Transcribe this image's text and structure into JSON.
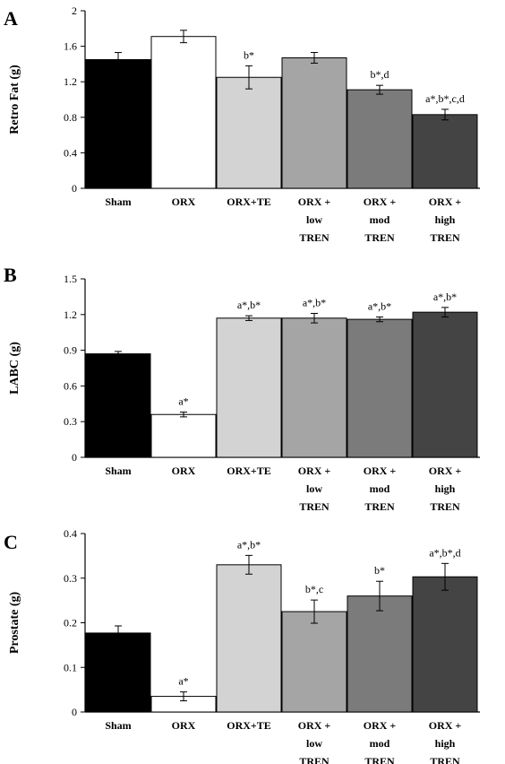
{
  "chart_data": [
    {
      "type": "bar",
      "panel": "A",
      "ylabel": "Retro Fat (g)",
      "ylim": [
        0,
        2
      ],
      "yticks": [
        "0",
        "0.4",
        "0.8",
        "1.2",
        "1.6",
        "2"
      ],
      "categories": [
        "Sham",
        "ORX",
        "ORX+TE",
        "ORX + low TREN",
        "ORX + mod TREN",
        "ORX + high TREN"
      ],
      "category_lines": [
        [
          "Sham"
        ],
        [
          "ORX"
        ],
        [
          "ORX+TE"
        ],
        [
          "ORX +",
          "low",
          "TREN"
        ],
        [
          "ORX +",
          "mod",
          "TREN"
        ],
        [
          "ORX +",
          "high",
          "TREN"
        ]
      ],
      "values": [
        1.45,
        1.71,
        1.25,
        1.47,
        1.11,
        0.83
      ],
      "errors": [
        0.08,
        0.07,
        0.13,
        0.06,
        0.05,
        0.06
      ],
      "annotations": [
        "",
        "",
        "b*",
        "",
        "b*,d",
        "a*,b*,c,d"
      ],
      "colors": [
        "#000000",
        "#ffffff",
        "#d3d3d3",
        "#a5a5a5",
        "#7b7b7b",
        "#444444"
      ]
    },
    {
      "type": "bar",
      "panel": "B",
      "ylabel": "LABC (g)",
      "ylim": [
        0,
        1.5
      ],
      "yticks": [
        "0",
        "0.3",
        "0.6",
        "0.9",
        "1.2",
        "1.5"
      ],
      "categories": [
        "Sham",
        "ORX",
        "ORX+TE",
        "ORX + low TREN",
        "ORX + mod TREN",
        "ORX + high TREN"
      ],
      "category_lines": [
        [
          "Sham"
        ],
        [
          "ORX"
        ],
        [
          "ORX+TE"
        ],
        [
          "ORX +",
          "low",
          "TREN"
        ],
        [
          "ORX +",
          "mod",
          "TREN"
        ],
        [
          "ORX +",
          "high",
          "TREN"
        ]
      ],
      "values": [
        0.87,
        0.36,
        1.17,
        1.17,
        1.16,
        1.22
      ],
      "errors": [
        0.02,
        0.02,
        0.02,
        0.04,
        0.02,
        0.04
      ],
      "annotations": [
        "",
        "a*",
        "a*,b*",
        "a*,b*",
        "a*,b*",
        "a*,b*"
      ],
      "colors": [
        "#000000",
        "#ffffff",
        "#d3d3d3",
        "#a5a5a5",
        "#7b7b7b",
        "#444444"
      ]
    },
    {
      "type": "bar",
      "panel": "C",
      "ylabel": "Prostate (g)",
      "ylim": [
        0,
        0.4
      ],
      "yticks": [
        "0",
        "0.1",
        "0.2",
        "0.3",
        "0.4"
      ],
      "categories": [
        "Sham",
        "ORX",
        "ORX+TE",
        "ORX + low TREN",
        "ORX + mod TREN",
        "ORX + high TREN"
      ],
      "category_lines": [
        [
          "Sham"
        ],
        [
          "ORX"
        ],
        [
          "ORX+TE"
        ],
        [
          "ORX +",
          "low",
          "TREN"
        ],
        [
          "ORX +",
          "mod",
          "TREN"
        ],
        [
          "ORX +",
          "high",
          "TREN"
        ]
      ],
      "values": [
        0.177,
        0.035,
        0.33,
        0.225,
        0.26,
        0.303
      ],
      "errors": [
        0.016,
        0.01,
        0.021,
        0.026,
        0.033,
        0.03
      ],
      "annotations": [
        "",
        "a*",
        "a*,b*",
        "b*,c",
        "b*",
        "a*,b*,d"
      ],
      "colors": [
        "#000000",
        "#ffffff",
        "#d3d3d3",
        "#a5a5a5",
        "#7b7b7b",
        "#444444"
      ]
    }
  ]
}
